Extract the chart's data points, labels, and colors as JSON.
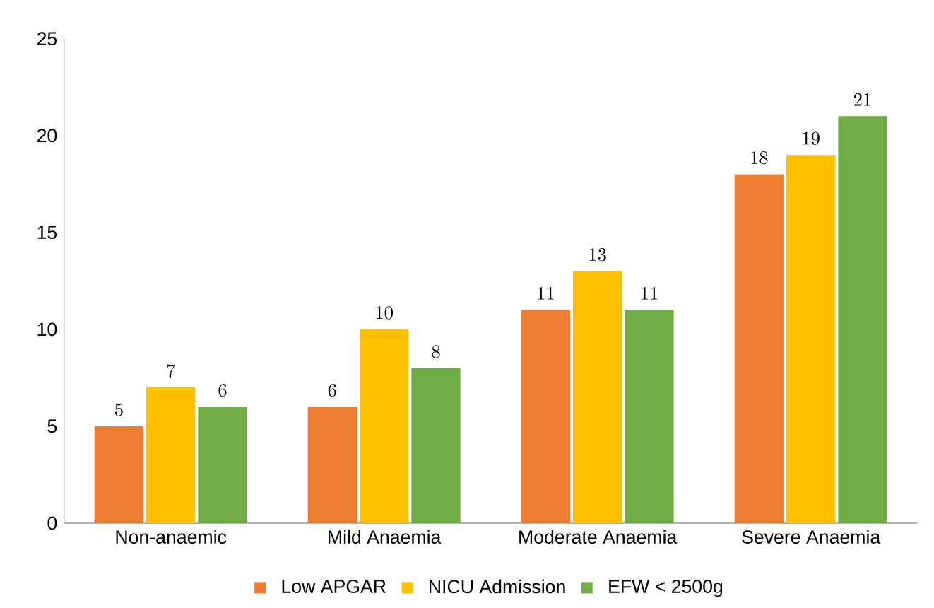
{
  "chart_data": {
    "type": "bar",
    "categories": [
      "Non-anaemic",
      "Mild Anaemia",
      "Moderate Anaemia",
      "Severe Anaemia"
    ],
    "series": [
      {
        "name": "Low APGAR",
        "color": "#ed7d31",
        "values": [
          5,
          6,
          11,
          18
        ]
      },
      {
        "name": "NICU Admission",
        "color": "#ffc000",
        "values": [
          7,
          10,
          13,
          19
        ]
      },
      {
        "name": "EFW < 2500g",
        "color": "#70ad47",
        "values": [
          6,
          8,
          11,
          21
        ]
      }
    ],
    "ylim": [
      0,
      25
    ],
    "yticks": [
      0,
      5,
      10,
      15,
      20,
      25
    ],
    "grid": false,
    "legend": "bottom",
    "data_labels": true
  }
}
